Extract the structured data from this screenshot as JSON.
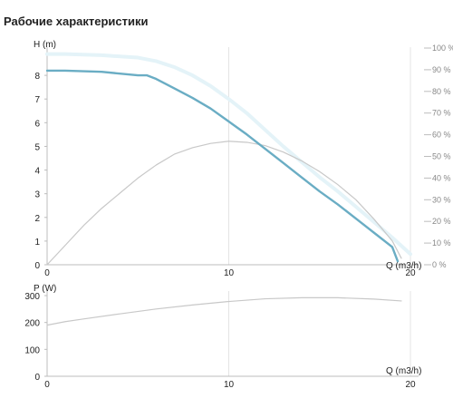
{
  "page": {
    "title": "Рабочие характеристики"
  },
  "chart_data": [
    {
      "type": "line",
      "ylabel": "H (m)",
      "xlabel": "Q (m3/h)",
      "xlim": [
        0,
        20
      ],
      "ylim": [
        0,
        9
      ],
      "x_ticks": [
        "0",
        "10",
        "20"
      ],
      "y_ticks": [
        "0",
        "1",
        "2",
        "3",
        "4",
        "5",
        "6",
        "7",
        "8"
      ],
      "y2_ticks": [
        "0 %",
        "10 %",
        "20 %",
        "30 %",
        "40 %",
        "50 %",
        "60 %",
        "70 %",
        "80 %",
        "90 %",
        "100 %"
      ],
      "y2lim": [
        0,
        100
      ],
      "grid": true,
      "series": [
        {
          "axis": "left",
          "color": "#6aadc4",
          "x": [
            0,
            1,
            3,
            5,
            5.5,
            6,
            7,
            8,
            9,
            10,
            11,
            12,
            13,
            14,
            15,
            16,
            17,
            18,
            19,
            19.3
          ],
          "y": [
            8.2,
            8.2,
            8.15,
            8.0,
            8.0,
            7.85,
            7.45,
            7.05,
            6.6,
            6.05,
            5.5,
            4.9,
            4.3,
            3.7,
            3.1,
            2.55,
            1.95,
            1.35,
            0.75,
            0.15
          ]
        },
        {
          "axis": "left",
          "color": "#e4f3f8",
          "x": [
            0,
            1,
            3,
            5,
            6,
            7,
            8,
            9,
            10,
            11,
            12,
            13,
            14,
            15,
            16,
            17,
            18,
            19,
            20
          ],
          "y": [
            8.9,
            8.9,
            8.85,
            8.75,
            8.6,
            8.35,
            8.0,
            7.55,
            7.0,
            6.4,
            5.7,
            5.0,
            4.35,
            3.7,
            3.1,
            2.45,
            1.8,
            1.15,
            0.45
          ]
        },
        {
          "axis": "right",
          "color": "#c8c8c8",
          "x": [
            0,
            1,
            2,
            3,
            4,
            5,
            6,
            7,
            8,
            9,
            10,
            11,
            12,
            13,
            14,
            15,
            16,
            17,
            18,
            19,
            19.5
          ],
          "y": [
            0,
            9,
            18,
            26,
            33,
            40,
            46,
            51,
            54,
            56,
            57,
            56.5,
            55,
            52,
            48,
            43,
            37,
            30,
            21,
            11,
            3
          ]
        }
      ]
    },
    {
      "type": "line",
      "ylabel": "P (W)",
      "xlabel": "Q (m3/h)",
      "xlim": [
        0,
        20
      ],
      "ylim": [
        0,
        300
      ],
      "x_ticks": [
        "0",
        "10",
        "20"
      ],
      "y_ticks": [
        "0",
        "100",
        "200",
        "300"
      ],
      "grid": true,
      "series": [
        {
          "axis": "left",
          "color": "#c8c8c8",
          "x": [
            0,
            1,
            2,
            4,
            6,
            8,
            10,
            12,
            14,
            16,
            18,
            19.5
          ],
          "y": [
            190,
            203,
            213,
            232,
            250,
            265,
            278,
            288,
            292,
            292,
            287,
            280
          ]
        }
      ]
    }
  ]
}
